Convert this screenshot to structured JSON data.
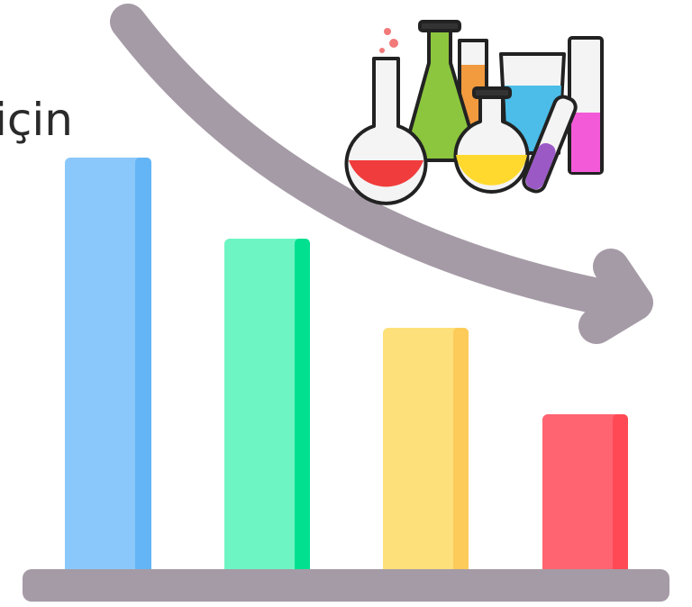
{
  "text": "için"
}
